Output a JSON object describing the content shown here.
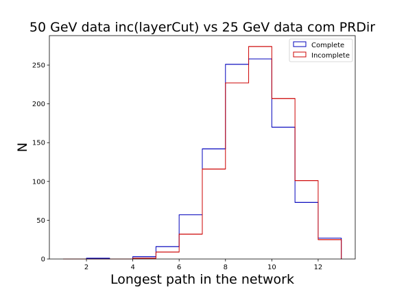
{
  "chart_data": {
    "type": "histogram",
    "title": "50 GeV data inc(layerCut) vs 25 GeV data com PRDir",
    "xlabel": "Longest path in the network",
    "ylabel": "N",
    "xlim": [
      0.4,
      13.6
    ],
    "ylim": [
      0,
      288
    ],
    "xticks": [
      2,
      4,
      6,
      8,
      10,
      12
    ],
    "yticks": [
      0,
      50,
      100,
      150,
      200,
      250
    ],
    "grid": false,
    "legend_position": "upper right",
    "bin_edges": [
      1,
      2,
      3,
      4,
      5,
      6,
      7,
      8,
      9,
      10,
      11,
      12,
      13
    ],
    "series": [
      {
        "name": "Complete",
        "color": "#0000bb",
        "values": [
          0,
          1,
          0,
          3,
          16,
          57,
          142,
          251,
          258,
          170,
          73,
          27
        ]
      },
      {
        "name": "Incomplete",
        "color": "#cc0000",
        "values": [
          0,
          0,
          0,
          1,
          9,
          32,
          116,
          227,
          274,
          207,
          101,
          25
        ]
      }
    ]
  }
}
